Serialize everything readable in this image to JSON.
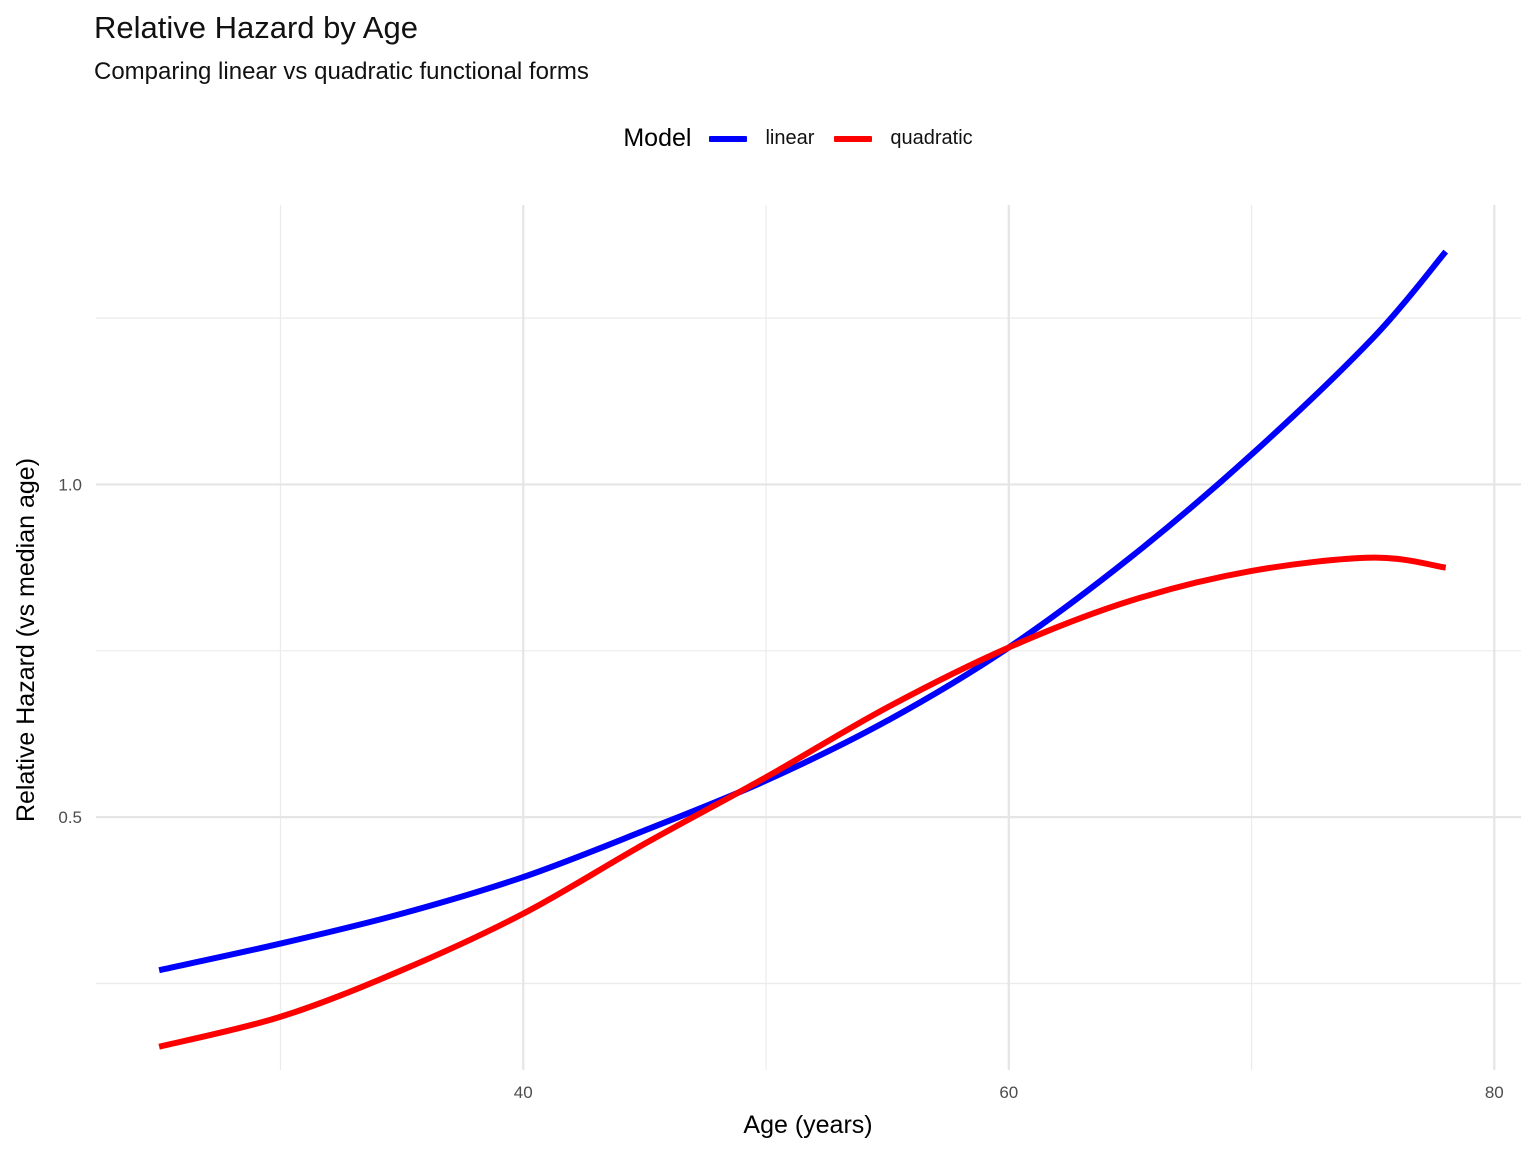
{
  "chart_data": {
    "type": "line",
    "title": "Relative Hazard by Age",
    "subtitle": "Comparing linear vs quadratic functional forms",
    "xlabel": "Age (years)",
    "ylabel": "Relative Hazard (vs median age)",
    "xlim": [
      22.4,
      81.1
    ],
    "ylim": [
      0.12,
      1.42
    ],
    "x_ticks": [
      40,
      60,
      80
    ],
    "x_tick_labels": [
      "40",
      "60",
      "80"
    ],
    "y_ticks": [
      0.5,
      1.0
    ],
    "y_tick_labels": [
      "0.5",
      "1.0"
    ],
    "x_minor_gridlines": [
      30,
      50,
      70
    ],
    "y_minor_gridlines": [
      0.25,
      0.75,
      1.25
    ],
    "grid": true,
    "legend": {
      "title": "Model",
      "position": "top",
      "entries": [
        "linear",
        "quadratic"
      ]
    },
    "colors": {
      "linear": "#0000ff",
      "quadratic": "#ff0000"
    },
    "series": [
      {
        "name": "linear",
        "x": [
          25,
          30,
          35,
          40,
          45,
          50,
          55,
          60,
          65,
          70,
          75,
          78
        ],
        "y": [
          0.27,
          0.31,
          0.355,
          0.41,
          0.48,
          0.555,
          0.645,
          0.755,
          0.89,
          1.045,
          1.22,
          1.35
        ]
      },
      {
        "name": "quadratic",
        "x": [
          25,
          30,
          35,
          40,
          45,
          50,
          55,
          60,
          65,
          70,
          75,
          78
        ],
        "y": [
          0.155,
          0.2,
          0.27,
          0.355,
          0.46,
          0.56,
          0.665,
          0.755,
          0.825,
          0.87,
          0.89,
          0.875
        ]
      }
    ]
  }
}
